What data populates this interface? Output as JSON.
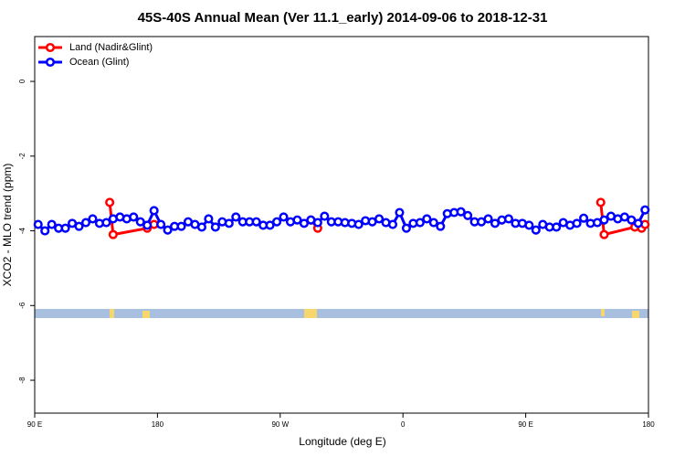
{
  "chart_data": {
    "type": "line",
    "title": "45S-40S Annual Mean (Ver 11.1_early)   2014-09-06 to 2018-12-31",
    "x_label": "Longitude (deg E)",
    "y_label": "XCO2 - MLO trend (ppm)",
    "xlim": [
      90,
      540
    ],
    "ylim": [
      -8.88,
      1.2
    ],
    "xticks": [
      {
        "value": 90,
        "label": "90 E"
      },
      180,
      {
        "value": 270,
        "label": "90 W"
      },
      {
        "value": 360,
        "label": "0"
      },
      {
        "value": 450,
        "label": "90 E"
      },
      {
        "value": 540,
        "label": "180"
      }
    ],
    "yticks": [
      0,
      -2,
      -4,
      -6,
      -8
    ],
    "legend": "top-left",
    "series": [
      {
        "name": "Land (Nadir&Glint)",
        "color": "#ff0000",
        "x": [
          145,
          147.5,
          172.5,
          177.5,
          250,
          292.5,
          297.5,
          400,
          505,
          507.5,
          530,
          535,
          537.5
        ],
        "values": [
          -3.24,
          -4.1,
          -3.93,
          -3.83,
          null,
          -3.71,
          -3.93,
          null,
          -3.24,
          -4.1,
          -3.9,
          -3.93,
          -3.83
        ]
      },
      {
        "name": "Ocean (Glint)",
        "color": "#0000ff",
        "x": [
          92.5,
          97.5,
          102.5,
          107.5,
          112.5,
          117.5,
          122.5,
          127.5,
          132.5,
          137.5,
          142.5,
          147.5,
          152.5,
          157.5,
          162.5,
          167.5,
          172.5,
          177.5,
          182.5,
          187.5,
          192.5,
          197.5,
          202.5,
          207.5,
          212.5,
          217.5,
          222.5,
          227.5,
          232.5,
          237.5,
          242.5,
          247.5,
          252.5,
          257.5,
          262.5,
          267.5,
          272.5,
          277.5,
          282.5,
          287.5,
          292.5,
          297.5,
          302.5,
          307.5,
          312.5,
          317.5,
          322.5,
          327.5,
          332.5,
          337.5,
          342.5,
          347.5,
          352.5,
          357.5,
          362.5,
          367.5,
          372.5,
          377.5,
          382.5,
          387.5,
          392.5,
          397.5,
          402.5,
          407.5,
          412.5,
          417.5,
          422.5,
          427.5,
          432.5,
          437.5,
          442.5,
          447.5,
          452.5,
          457.5,
          462.5,
          467.5,
          472.5,
          477.5,
          482.5,
          487.5,
          492.5,
          497.5,
          502.5,
          507.5,
          512.5,
          517.5,
          522.5,
          527.5,
          532.5,
          537.5
        ],
        "values": [
          -3.83,
          -4.0,
          -3.83,
          -3.93,
          -3.93,
          -3.8,
          -3.88,
          -3.78,
          -3.68,
          -3.8,
          -3.78,
          -3.68,
          -3.63,
          -3.68,
          -3.63,
          -3.76,
          -3.85,
          -3.46,
          -3.83,
          -3.98,
          -3.88,
          -3.88,
          -3.76,
          -3.83,
          -3.9,
          -3.68,
          -3.9,
          -3.76,
          -3.8,
          -3.63,
          -3.76,
          -3.76,
          -3.76,
          -3.85,
          -3.85,
          -3.76,
          -3.63,
          -3.76,
          -3.71,
          -3.8,
          -3.71,
          -3.78,
          -3.61,
          -3.76,
          -3.76,
          -3.78,
          -3.8,
          -3.83,
          -3.73,
          -3.76,
          -3.68,
          -3.78,
          -3.83,
          -3.51,
          -3.93,
          -3.8,
          -3.78,
          -3.68,
          -3.78,
          -3.88,
          -3.54,
          -3.51,
          -3.49,
          -3.59,
          -3.76,
          -3.76,
          -3.68,
          -3.8,
          -3.71,
          -3.68,
          -3.8,
          -3.8,
          -3.85,
          -3.98,
          -3.83,
          -3.9,
          -3.9,
          -3.78,
          -3.85,
          -3.8,
          -3.66,
          -3.8,
          -3.78,
          -3.71,
          -3.61,
          -3.68,
          -3.63,
          -3.71,
          -3.8,
          -3.44
        ]
      }
    ]
  }
}
